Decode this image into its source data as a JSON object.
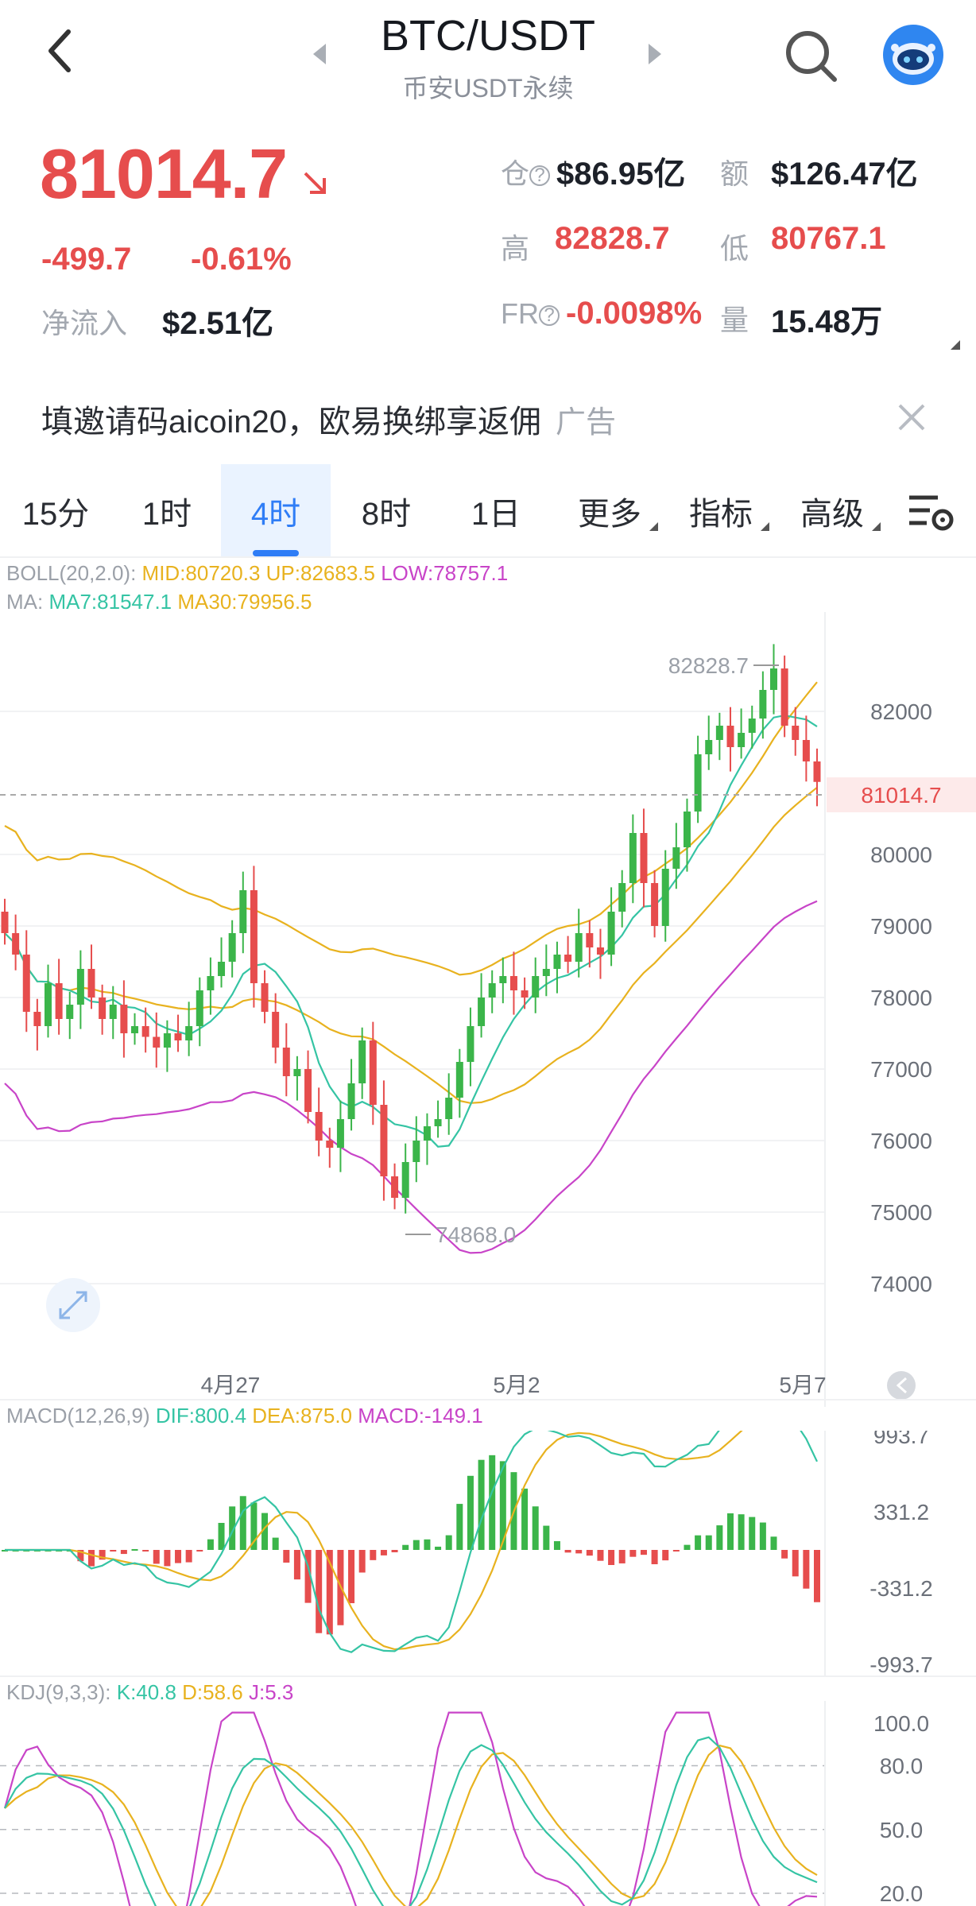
{
  "header": {
    "title": "BTC/USDT",
    "subtitle": "币安USDT永续"
  },
  "ticker": {
    "last_price": "81014.7",
    "change_abs": "-499.7",
    "change_pct": "-0.61%",
    "net_inflow_label": "净流入",
    "net_inflow_value": "$2.51亿",
    "oi_label": "仓",
    "oi_value": "$86.95亿",
    "turnover_label": "额",
    "turnover_value": "$126.47亿",
    "high_label": "高",
    "high_value": "82828.7",
    "low_label": "低",
    "low_value": "80767.1",
    "fr_label": "FR",
    "fr_value": "-0.0098%",
    "volume_label": "量",
    "volume_value": "15.48万"
  },
  "banner": {
    "text": "填邀请码aicoin20，欧易换绑享返佣",
    "ad_label": "广告"
  },
  "tabs": {
    "t15m": "15分",
    "t1h": "1时",
    "t4h": "4时",
    "t8h": "8时",
    "t1d": "1日",
    "more": "更多",
    "indicators": "指标",
    "advanced": "高级",
    "active": "4时"
  },
  "colors": {
    "up": "#3bb54a",
    "down": "#e64d4d",
    "accent": "#2f7df6",
    "mid": "#e8b21f",
    "upper": "#e8b21f",
    "lower": "#c844c8",
    "ma7": "#35c4a4"
  },
  "icons": {
    "back": "chevron-left-icon",
    "prev": "triangle-left-icon",
    "next": "triangle-right-icon",
    "search": "search-icon",
    "avatar": "robot-avatar-icon",
    "close": "close-icon",
    "settings": "chart-settings-icon",
    "expand": "expand-icon",
    "collapse": "chevron-icon"
  },
  "indicators": {
    "boll": {
      "name": "BOLL(20,2.0):",
      "mid": "MID:80720.3",
      "up": "UP:82683.5",
      "low": "LOW:78757.1"
    },
    "ma": {
      "name": "MA:",
      "ma7": "MA7:81547.1",
      "ma30": "MA30:79956.5"
    },
    "macd": {
      "name": "MACD(12,26,9)",
      "dif": "DIF:800.4",
      "dea": "DEA:875.0",
      "macd": "MACD:-149.1"
    },
    "kdj": {
      "name": "KDJ(9,3,3):",
      "k": "K:40.8",
      "d": "D:58.6",
      "j": "J:5.3"
    }
  },
  "chart_data": {
    "type": "candlestick",
    "price_axis": [
      "82000",
      "81014.7",
      "80000",
      "79000",
      "78000",
      "77000",
      "76000",
      "75000",
      "74000"
    ],
    "price_ylim": [
      73500,
      83500
    ],
    "high_marker": "82828.7",
    "low_marker": "74868.0",
    "x_labels": [
      "4月27",
      "5月2",
      "5月7"
    ],
    "macd_axis": [
      "993.7",
      "331.2",
      "-331.2",
      "-993.7"
    ],
    "kdj_axis": [
      "100.0",
      "80.0",
      "50.0",
      "20.0"
    ]
  }
}
